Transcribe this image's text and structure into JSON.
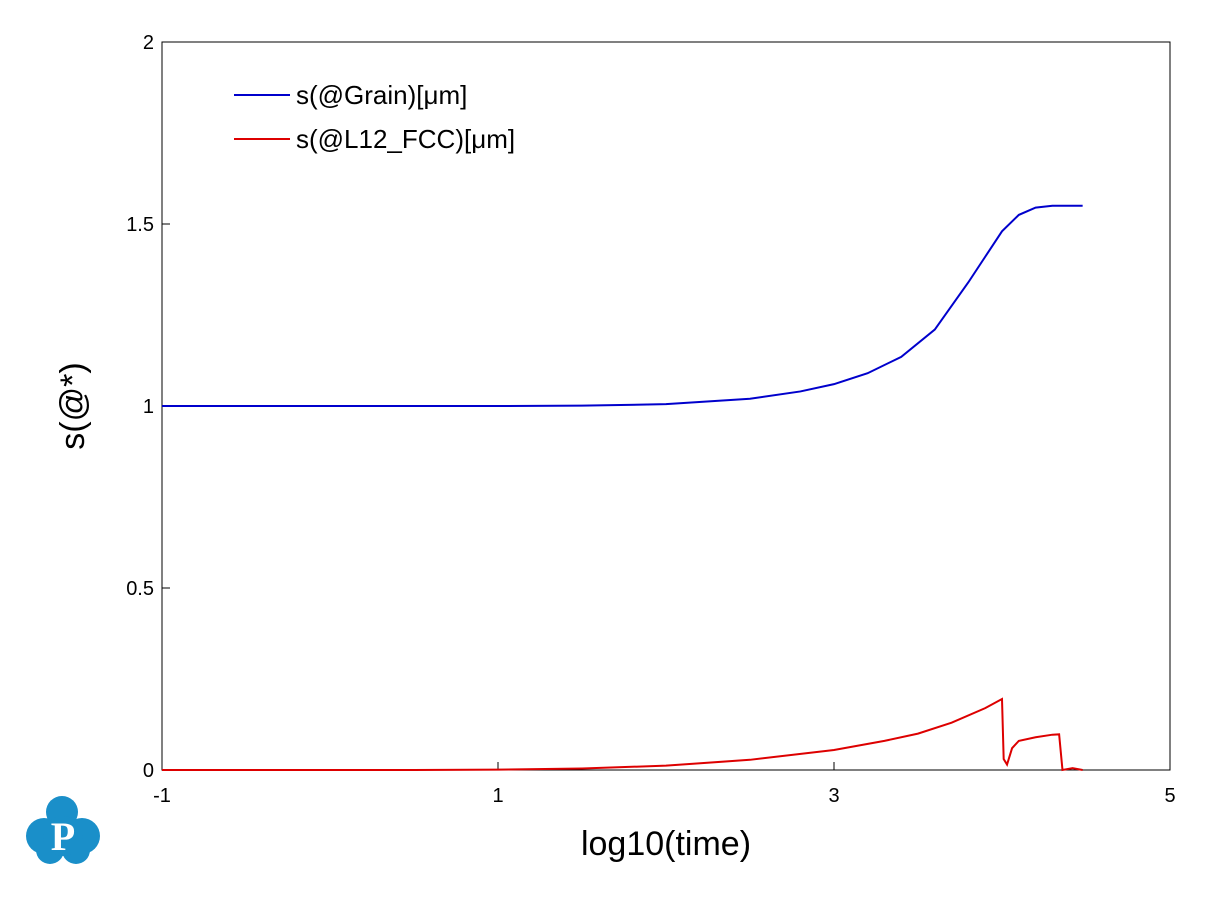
{
  "chart_data": {
    "type": "line",
    "x_label": "log10(time)",
    "y_label": "s(@*)",
    "xlim": [
      -1,
      5
    ],
    "xticks": [
      -1,
      1,
      3,
      5
    ],
    "ylim": [
      0,
      2
    ],
    "yticks": [
      0,
      0.5,
      1,
      1.5,
      2
    ],
    "legend": "upper left",
    "series": [
      {
        "name": "s(@Grain)[μm]",
        "color": "#0000cc",
        "x": [
          -1,
          0,
          1,
          1.5,
          2,
          2.5,
          2.8,
          3,
          3.2,
          3.4,
          3.6,
          3.8,
          3.9,
          4.0,
          4.1,
          4.2,
          4.3,
          4.48
        ],
        "values": [
          1.0,
          1.0,
          1.0,
          1.001,
          1.005,
          1.02,
          1.04,
          1.06,
          1.09,
          1.135,
          1.21,
          1.34,
          1.41,
          1.48,
          1.525,
          1.545,
          1.55,
          1.55
        ]
      },
      {
        "name": "s(@L12_FCC)[μm]",
        "color": "#dd0000",
        "x": [
          -1,
          0,
          0.5,
          1,
          1.5,
          2,
          2.5,
          3,
          3.3,
          3.5,
          3.7,
          3.9,
          4.0,
          4.01,
          4.03,
          4.06,
          4.1,
          4.2,
          4.3,
          4.34,
          4.36,
          4.42,
          4.48
        ],
        "values": [
          0,
          0,
          0,
          0.001,
          0.004,
          0.012,
          0.028,
          0.055,
          0.08,
          0.1,
          0.13,
          0.17,
          0.195,
          0.03,
          0.015,
          0.06,
          0.08,
          0.09,
          0.097,
          0.098,
          0,
          0.005,
          0
        ]
      }
    ]
  }
}
